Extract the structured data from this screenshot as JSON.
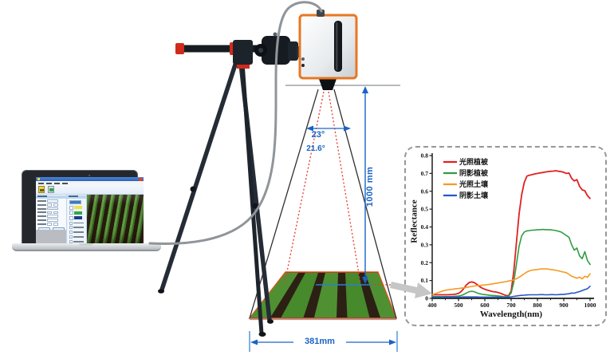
{
  "scene": {
    "labels": {
      "fov_angle": "23°",
      "inner_angle": "21.6°",
      "height_dim": "1000 mm",
      "footprint_dim": "381mm"
    },
    "palette": {
      "dimension_blue": "#1a63c6",
      "dotted_red": "#e8392a",
      "field_border": "#e8501e",
      "device_orange": "#e87722"
    }
  },
  "laptop": {
    "swatches": [
      "#efe24a",
      "#2fa84a",
      "#1c3a8e"
    ]
  },
  "chart_data": {
    "type": "line",
    "title": "",
    "xlabel": "Wavelength(nm)",
    "ylabel": "Reflectance",
    "xlim": [
      400,
      1000
    ],
    "ylim": [
      0,
      0.8
    ],
    "xticks": [
      400,
      500,
      600,
      700,
      800,
      900,
      1000
    ],
    "yticks": [
      "0",
      "0.1",
      "0.2",
      "0.3",
      "0.4",
      "0.5",
      "0.6",
      "0.7",
      "0.8"
    ],
    "grid": false,
    "legend_position": "top-left",
    "wavelengths": [
      400,
      410,
      420,
      430,
      440,
      450,
      460,
      470,
      480,
      490,
      500,
      510,
      520,
      530,
      540,
      550,
      560,
      570,
      580,
      590,
      600,
      610,
      620,
      630,
      640,
      650,
      660,
      670,
      680,
      690,
      700,
      710,
      720,
      730,
      740,
      750,
      760,
      770,
      780,
      790,
      800,
      810,
      820,
      830,
      840,
      850,
      860,
      870,
      880,
      890,
      900,
      910,
      920,
      930,
      940,
      950,
      960,
      970,
      980,
      990,
      1000
    ],
    "series": [
      {
        "name": "光照植被",
        "color": "#e02020",
        "values": [
          0.02,
          0.02,
          0.02,
          0.02,
          0.02,
          0.02,
          0.02,
          0.021,
          0.022,
          0.024,
          0.028,
          0.038,
          0.055,
          0.075,
          0.088,
          0.092,
          0.088,
          0.078,
          0.066,
          0.057,
          0.051,
          0.046,
          0.042,
          0.038,
          0.036,
          0.033,
          0.028,
          0.022,
          0.016,
          0.015,
          0.04,
          0.15,
          0.31,
          0.47,
          0.58,
          0.65,
          0.685,
          0.69,
          0.693,
          0.697,
          0.7,
          0.703,
          0.705,
          0.708,
          0.71,
          0.712,
          0.713,
          0.715,
          0.712,
          0.71,
          0.706,
          0.7,
          0.702,
          0.672,
          0.658,
          0.665,
          0.628,
          0.608,
          0.603,
          0.575,
          0.56
        ]
      },
      {
        "name": "阴影植被",
        "color": "#2e9e40",
        "values": [
          0.01,
          0.01,
          0.01,
          0.01,
          0.01,
          0.01,
          0.01,
          0.01,
          0.011,
          0.012,
          0.013,
          0.016,
          0.022,
          0.03,
          0.037,
          0.04,
          0.037,
          0.031,
          0.026,
          0.023,
          0.021,
          0.019,
          0.017,
          0.016,
          0.015,
          0.014,
          0.012,
          0.01,
          0.009,
          0.012,
          0.03,
          0.09,
          0.19,
          0.29,
          0.35,
          0.372,
          0.378,
          0.38,
          0.382,
          0.383,
          0.385,
          0.385,
          0.386,
          0.385,
          0.385,
          0.384,
          0.382,
          0.38,
          0.376,
          0.372,
          0.362,
          0.352,
          0.342,
          0.3,
          0.27,
          0.282,
          0.238,
          0.222,
          0.262,
          0.212,
          0.19
        ]
      },
      {
        "name": "光照土壤",
        "color": "#f59a23",
        "values": [
          0.02,
          0.026,
          0.031,
          0.036,
          0.041,
          0.045,
          0.048,
          0.05,
          0.052,
          0.054,
          0.055,
          0.057,
          0.059,
          0.061,
          0.064,
          0.067,
          0.069,
          0.071,
          0.072,
          0.074,
          0.075,
          0.077,
          0.079,
          0.081,
          0.084,
          0.086,
          0.089,
          0.091,
          0.094,
          0.097,
          0.1,
          0.104,
          0.11,
          0.118,
          0.128,
          0.138,
          0.148,
          0.154,
          0.158,
          0.16,
          0.162,
          0.164,
          0.165,
          0.165,
          0.164,
          0.162,
          0.16,
          0.157,
          0.154,
          0.15,
          0.147,
          0.144,
          0.134,
          0.124,
          0.119,
          0.113,
          0.119,
          0.109,
          0.124,
          0.118,
          0.138
        ]
      },
      {
        "name": "阴影土壤",
        "color": "#2757c4",
        "values": [
          0.006,
          0.006,
          0.006,
          0.006,
          0.006,
          0.007,
          0.007,
          0.007,
          0.007,
          0.007,
          0.007,
          0.007,
          0.008,
          0.008,
          0.008,
          0.008,
          0.008,
          0.008,
          0.007,
          0.007,
          0.007,
          0.007,
          0.007,
          0.007,
          0.007,
          0.007,
          0.007,
          0.006,
          0.006,
          0.007,
          0.009,
          0.011,
          0.013,
          0.015,
          0.017,
          0.018,
          0.019,
          0.02,
          0.02,
          0.02,
          0.02,
          0.021,
          0.021,
          0.02,
          0.02,
          0.021,
          0.021,
          0.02,
          0.021,
          0.022,
          0.022,
          0.024,
          0.026,
          0.03,
          0.029,
          0.034,
          0.038,
          0.044,
          0.049,
          0.054,
          0.068
        ]
      }
    ]
  }
}
